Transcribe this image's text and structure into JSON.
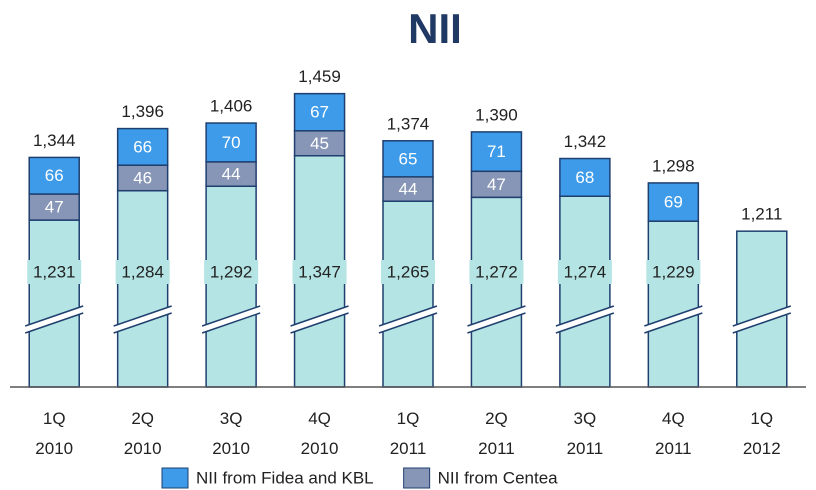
{
  "chart_data": {
    "type": "stacked_bar",
    "title": "NII",
    "categories": [
      "1Q\n2010",
      "2Q\n2010",
      "3Q\n2010",
      "4Q\n2010",
      "1Q\n2011",
      "2Q\n2011",
      "3Q\n2011",
      "4Q\n2011",
      "1Q\n2012"
    ],
    "series": [
      {
        "color": "#b4e4e4",
        "values": [
          1231,
          1284,
          1292,
          1347,
          1265,
          1272,
          1274,
          1229,
          1211
        ],
        "value_labels": [
          "1,231",
          "1,284",
          "1,292",
          "1,347",
          "1,265",
          "1,272",
          "1,274",
          "1,229",
          null
        ]
      },
      {
        "name": "NII from Centea",
        "color": "#8796b6",
        "values": [
          47,
          46,
          44,
          45,
          44,
          47,
          null,
          null,
          null
        ]
      },
      {
        "name": "NII from Fidea and KBL",
        "color": "#3d9be9",
        "values": [
          66,
          66,
          70,
          67,
          65,
          71,
          68,
          69,
          null
        ]
      }
    ],
    "totals": [
      1344,
      1396,
      1406,
      1459,
      1374,
      1390,
      1342,
      1298,
      1211
    ],
    "total_labels": [
      "1,344",
      "1,396",
      "1,406",
      "1,459",
      "1,374",
      "1,390",
      "1,342",
      "1,298",
      "1,211"
    ],
    "ylim": [
      930,
      1480
    ],
    "axis_break": true,
    "legend": "bottom"
  }
}
